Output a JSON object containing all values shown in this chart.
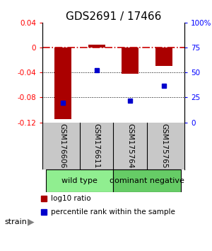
{
  "title": "GDS2691 / 17466",
  "samples": [
    "GSM176606",
    "GSM176611",
    "GSM175764",
    "GSM175765"
  ],
  "log10_ratio": [
    -0.115,
    0.005,
    -0.042,
    -0.03
  ],
  "percentile_rank": [
    20,
    52,
    22,
    37
  ],
  "ylim_left": [
    -0.12,
    0.04
  ],
  "ylim_right": [
    0,
    100
  ],
  "yticks_left": [
    0.04,
    0,
    -0.04,
    -0.08,
    -0.12
  ],
  "yticks_right": [
    100,
    75,
    50,
    25,
    0
  ],
  "ytick_labels_left": [
    "0.04",
    "0",
    "-0.04",
    "-0.08",
    "-0.12"
  ],
  "ytick_labels_right": [
    "100%",
    "75",
    "50",
    "25",
    "0"
  ],
  "groups": [
    {
      "label": "wild type",
      "samples": [
        0,
        1
      ],
      "color": "#90EE90"
    },
    {
      "label": "dominant negative",
      "samples": [
        2,
        3
      ],
      "color": "#66CC66"
    }
  ],
  "bar_color": "#AA0000",
  "dot_color": "#0000CC",
  "dashed_line_color": "#CC0000",
  "background_color": "#ffffff",
  "legend_bar_label": "log10 ratio",
  "legend_dot_label": "percentile rank within the sample",
  "strain_label": "strain",
  "title_fontsize": 11
}
